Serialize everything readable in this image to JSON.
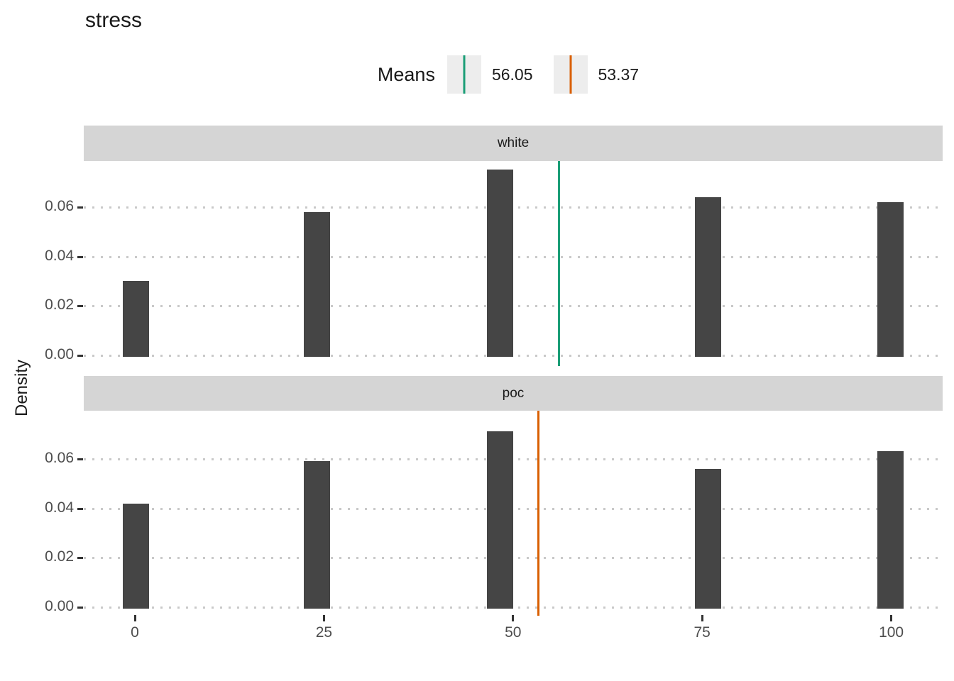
{
  "title": "stress",
  "legend": {
    "label": "Means",
    "entries": [
      {
        "value": "56.05",
        "color": "#1B9E77"
      },
      {
        "value": "53.37",
        "color": "#D95F02"
      }
    ]
  },
  "y_axis": {
    "label": "Density",
    "ticks": [
      "0.00",
      "0.02",
      "0.04",
      "0.06"
    ]
  },
  "x_axis": {
    "ticks": [
      "0",
      "25",
      "50",
      "75",
      "100"
    ]
  },
  "colors": {
    "bar": "#454545",
    "strip_bg": "#D5D5D5",
    "grid": "#C9C9C9",
    "legend_key_bg": "#EDEDED",
    "tick_mark": "#333333",
    "axis_text": "#4D4D4D",
    "mean_white": "#1B9E77",
    "mean_poc": "#D95F02"
  },
  "chart_data": {
    "type": "bar",
    "subtype": "faceted-histogram",
    "title": "stress",
    "xlabel": "",
    "ylabel": "Density",
    "x_ticks": [
      0,
      25,
      50,
      75,
      100
    ],
    "y_ticks": [
      0.0,
      0.02,
      0.04,
      0.06
    ],
    "xlim": [
      -6.8,
      106.8
    ],
    "ylim": [
      -0.004,
      0.0786
    ],
    "bin_width": 3.45,
    "grid": "dotted horizontal gridlines only",
    "legend_position": "top-center",
    "legend_title": "Means",
    "facets": [
      {
        "name": "white",
        "bin_centers": [
          0.1,
          24.1,
          48.3,
          75.8,
          99.9
        ],
        "densities": [
          0.03,
          0.058,
          0.075,
          0.064,
          0.062
        ],
        "mean": 56.05,
        "mean_label": "56.05",
        "mean_color": "#1B9E77"
      },
      {
        "name": "poc",
        "bin_centers": [
          0.1,
          24.1,
          48.3,
          75.8,
          99.9
        ],
        "densities": [
          0.042,
          0.059,
          0.071,
          0.056,
          0.063
        ],
        "mean": 53.37,
        "mean_label": "53.37",
        "mean_color": "#D95F02"
      }
    ]
  }
}
